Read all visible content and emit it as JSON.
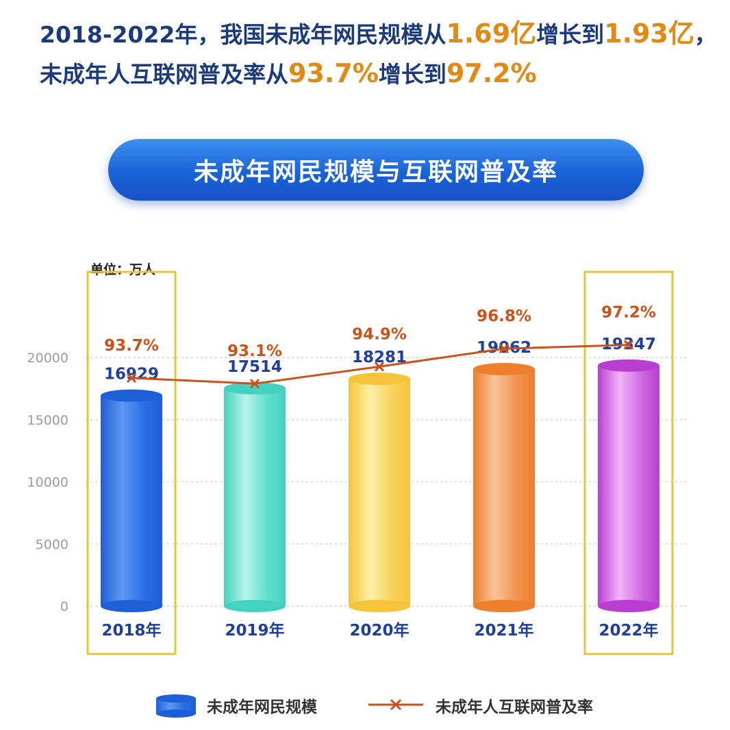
{
  "headline": {
    "line1_prefix": "2018-2022年，我国未成年网民规模从",
    "line1_from": "1.69亿",
    "line1_mid": "增长到",
    "line1_to": "1.93亿",
    "line1_suffix": "，",
    "line2_prefix": "未成年人互联网普及率从",
    "line2_from": "93.7%",
    "line2_mid": "增长到",
    "line2_to": "97.2%"
  },
  "chart_data": {
    "type": "bar",
    "title": "未成年网民规模与互联网普及率",
    "unit_label": "单位：万人",
    "categories": [
      "2018年",
      "2019年",
      "2020年",
      "2021年",
      "2022年"
    ],
    "series": [
      {
        "name": "未成年网民规模",
        "type": "bar",
        "values": [
          16929,
          17514,
          18281,
          19062,
          19347
        ],
        "labels": [
          "16929",
          "17514",
          "18281",
          "19062",
          "19347"
        ]
      },
      {
        "name": "未成年人互联网普及率",
        "type": "line",
        "values": [
          93.7,
          93.1,
          94.9,
          96.8,
          97.2
        ],
        "labels": [
          "93.7%",
          "93.1%",
          "94.9%",
          "96.8%",
          "97.2%"
        ]
      }
    ],
    "y_ticks": [
      0,
      5000,
      10000,
      15000,
      20000
    ],
    "y_tick_labels": [
      "0",
      "5000",
      "10000",
      "15000",
      "20000"
    ],
    "ylim": [
      0,
      20000
    ],
    "highlighted_categories": [
      0,
      4
    ],
    "bar_colors": [
      [
        "#1d5fd6",
        "#5e98f4",
        "#2a6ee3"
      ],
      [
        "#45d1bf",
        "#b6f4e8",
        "#5fe0cf"
      ],
      [
        "#f5c43a",
        "#fcefa6",
        "#f8d35e"
      ],
      [
        "#ee7f2c",
        "#f9c39b",
        "#f29350"
      ],
      [
        "#b83ed1",
        "#f0b4f7",
        "#cf6ee3"
      ]
    ],
    "line_color": "#c9521a",
    "highlight_color": "#e4c43a",
    "grid": true,
    "legend_position": "bottom"
  }
}
